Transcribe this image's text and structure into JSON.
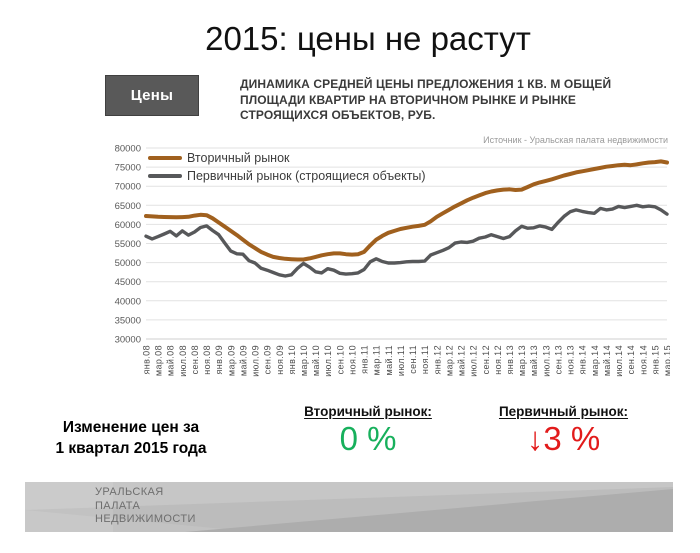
{
  "slide": {
    "title": "2015: цены не растут",
    "category_label": "Цены",
    "chart_heading": "ДИНАМИКА СРЕДНЕЙ ЦЕНЫ ПРЕДЛОЖЕНИЯ 1 КВ. М ОБЩЕЙ ПЛОЩАДИ КВАРТИР НА ВТОРИЧНОМ РЫНКЕ И РЫНКЕ СТРОЯЩИХСЯ ОБЪЕКТОВ, РУБ.",
    "source_note": "Источник - Уральская палата недвижимости"
  },
  "summary": {
    "label_line1": "Изменение цен за",
    "label_line2": "1 квартал 2015 года",
    "secondary": {
      "heading": "Вторичный рынок:",
      "value": "0 %",
      "color": "#17b05c"
    },
    "primary": {
      "heading": "Первичный рынок:",
      "value": "↓3 %",
      "color": "#e21b1b"
    }
  },
  "footer": {
    "org_line1": "УРАЛЬСКАЯ",
    "org_line2": "ПАЛАТА",
    "org_line3": "НЕДВИЖИМОСТИ"
  },
  "chart_data": {
    "type": "line",
    "title": "ДИНАМИКА СРЕДНЕЙ ЦЕНЫ ПРЕДЛОЖЕНИЯ 1 КВ. М ОБЩЕЙ ПЛОЩАДИ КВАРТИР НА ВТОРИЧНОМ РЫНКЕ И РЫНКЕ СТРОЯЩИХСЯ ОБЪЕКТОВ, РУБ.",
    "ylabel": "руб.",
    "ylim": [
      30000,
      80000
    ],
    "y_ticks": [
      80000,
      75000,
      70000,
      65000,
      60000,
      55000,
      50000,
      45000,
      40000,
      35000,
      30000
    ],
    "grid": "horizontal",
    "legend_position": "top-left",
    "x_start": "янв.08",
    "x_end": "мар.15",
    "x_tick_labels": [
      "янв.08",
      "мар.08",
      "май.08",
      "июл.08",
      "сен.08",
      "ноя.08",
      "янв.09",
      "мар.09",
      "май.09",
      "июл.09",
      "сен.09",
      "ноя.09",
      "янв.10",
      "мар.10",
      "май.10",
      "июл.10",
      "сен.10",
      "ноя.10",
      "янв.11",
      "мар.11",
      "май.11",
      "июл.11",
      "сен.11",
      "ноя.11",
      "янв.12",
      "мар.12",
      "май.12",
      "июл.12",
      "сен.12",
      "ноя.12",
      "янв.13",
      "мар.13",
      "май.13",
      "июл.13",
      "сен.13",
      "ноя.13",
      "янв.14",
      "мар.14",
      "май.14",
      "июл.14",
      "сен.14",
      "ноя.14",
      "янв.15",
      "мар.15"
    ],
    "x_tick_month_step": 2,
    "series": [
      {
        "name": "Вторичный рынок",
        "color": "#a0601e",
        "values": [
          62200,
          62100,
          62000,
          61950,
          61900,
          61850,
          61900,
          62000,
          62300,
          62500,
          62400,
          61600,
          60500,
          59400,
          58300,
          57200,
          56000,
          54800,
          53800,
          52800,
          52100,
          51500,
          51200,
          51000,
          50900,
          50800,
          50800,
          51100,
          51500,
          51900,
          52200,
          52400,
          52400,
          52200,
          52100,
          52200,
          52800,
          54500,
          56000,
          57000,
          57800,
          58300,
          58800,
          59100,
          59400,
          59600,
          59900,
          60800,
          62000,
          62900,
          63800,
          64700,
          65500,
          66300,
          67000,
          67600,
          68200,
          68600,
          68900,
          69100,
          69200,
          69000,
          69100,
          69800,
          70500,
          71000,
          71400,
          71800,
          72300,
          72800,
          73200,
          73600,
          73900,
          74200,
          74500,
          74800,
          75100,
          75300,
          75500,
          75600,
          75500,
          75700,
          76000,
          76200,
          76300,
          76500,
          76200
        ]
      },
      {
        "name": "Первичный рынок (строящиеся объекты)",
        "color": "#57585a",
        "values": [
          56900,
          56200,
          56800,
          57500,
          58200,
          57000,
          58300,
          57200,
          58000,
          59200,
          59600,
          58400,
          57300,
          55100,
          53000,
          52300,
          52200,
          50500,
          49900,
          48500,
          48000,
          47400,
          46800,
          46500,
          46800,
          48500,
          49800,
          48800,
          47600,
          47300,
          48400,
          48000,
          47200,
          47000,
          47100,
          47300,
          48200,
          50200,
          51000,
          50300,
          49900,
          49900,
          50000,
          50200,
          50300,
          50300,
          50400,
          52000,
          52600,
          53200,
          53900,
          55100,
          55400,
          55300,
          55600,
          56400,
          56700,
          57300,
          56800,
          56300,
          56800,
          58300,
          59500,
          59000,
          59100,
          59600,
          59300,
          58700,
          60500,
          62100,
          63300,
          63800,
          63400,
          63100,
          62900,
          64200,
          63800,
          64000,
          64700,
          64400,
          64700,
          65000,
          64600,
          64800,
          64600,
          63800,
          62700
        ]
      }
    ]
  }
}
